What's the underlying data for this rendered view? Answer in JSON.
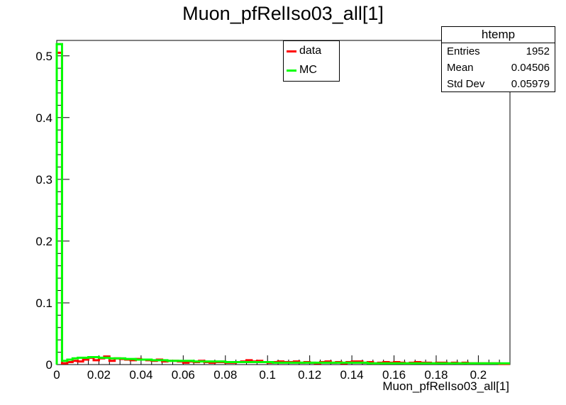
{
  "title": "Muon_pfRelIso03_all[1]",
  "legend": [
    {
      "label": "data",
      "color": "#ff0000"
    },
    {
      "label": "MC",
      "color": "#00ff00"
    }
  ],
  "stats": {
    "title": "htemp",
    "rows": [
      {
        "label": "Entries",
        "value": "1952"
      },
      {
        "label": "Mean",
        "value": "0.04506"
      },
      {
        "label": "Std Dev",
        "value": "0.05979"
      }
    ]
  },
  "chart_data": {
    "type": "bar",
    "title": "Muon_pfRelIso03_all[1]",
    "xlabel": "Muon_pfRelIso03_all[1]",
    "ylabel": "",
    "xlim": [
      0,
      0.215
    ],
    "ylim": [
      0,
      0.525
    ],
    "x_ticks": [
      "0",
      "0.02",
      "0.04",
      "0.06",
      "0.08",
      "0.1",
      "0.12",
      "0.14",
      "0.16",
      "0.18",
      "0.2"
    ],
    "y_ticks": [
      "0",
      "0.1",
      "0.2",
      "0.3",
      "0.4",
      "0.5"
    ],
    "bin_width": 0.0025,
    "series": [
      {
        "name": "data",
        "color": "#ff0000",
        "values": [
          0.505,
          0.002,
          0.004,
          0.006,
          0.005,
          0.008,
          0.011,
          0.007,
          0.01,
          0.013,
          0.006,
          0.01,
          0.009,
          0.008,
          0.007,
          0.009,
          0.008,
          0.007,
          0.006,
          0.008,
          0.005,
          0.006,
          0.006,
          0.005,
          0.003,
          0.005,
          0.004,
          0.006,
          0.004,
          0.003,
          0.004,
          0.004,
          0.003,
          0.003,
          0.004,
          0.005,
          0.007,
          0.005,
          0.006,
          0.004,
          0.003,
          0.004,
          0.005,
          0.004,
          0.004,
          0.005,
          0.003,
          0.004,
          0.003,
          0.002,
          0.004,
          0.005,
          0.003,
          0.004,
          0.002,
          0.004,
          0.005,
          0.005,
          0.003,
          0.004,
          0.002,
          0.003,
          0.004,
          0.003,
          0.004,
          0.003,
          0.002,
          0.003,
          0.004,
          0.003,
          0.003,
          0.002,
          0.003,
          0.003,
          0.002,
          0.003,
          0.002,
          0.003,
          0.002,
          0.002,
          0.002,
          0.002,
          0.002,
          0.002,
          0.001,
          0.001
        ]
      },
      {
        "name": "MC",
        "color": "#00ff00",
        "values": [
          0.519,
          0.006,
          0.008,
          0.01,
          0.011,
          0.011,
          0.012,
          0.012,
          0.011,
          0.011,
          0.01,
          0.01,
          0.01,
          0.009,
          0.009,
          0.008,
          0.008,
          0.008,
          0.007,
          0.007,
          0.007,
          0.006,
          0.006,
          0.006,
          0.006,
          0.006,
          0.005,
          0.005,
          0.005,
          0.005,
          0.005,
          0.005,
          0.004,
          0.004,
          0.004,
          0.004,
          0.004,
          0.004,
          0.004,
          0.004,
          0.004,
          0.003,
          0.003,
          0.003,
          0.003,
          0.003,
          0.003,
          0.003,
          0.003,
          0.003,
          0.003,
          0.003,
          0.003,
          0.003,
          0.003,
          0.003,
          0.003,
          0.003,
          0.003,
          0.002,
          0.002,
          0.002,
          0.002,
          0.002,
          0.002,
          0.002,
          0.002,
          0.002,
          0.002,
          0.002,
          0.002,
          0.002,
          0.002,
          0.002,
          0.002,
          0.002,
          0.002,
          0.002,
          0.002,
          0.002,
          0.002,
          0.002,
          0.002,
          0.002,
          0.002,
          0.002
        ]
      }
    ],
    "grid": false,
    "legend_position": "top-center"
  }
}
